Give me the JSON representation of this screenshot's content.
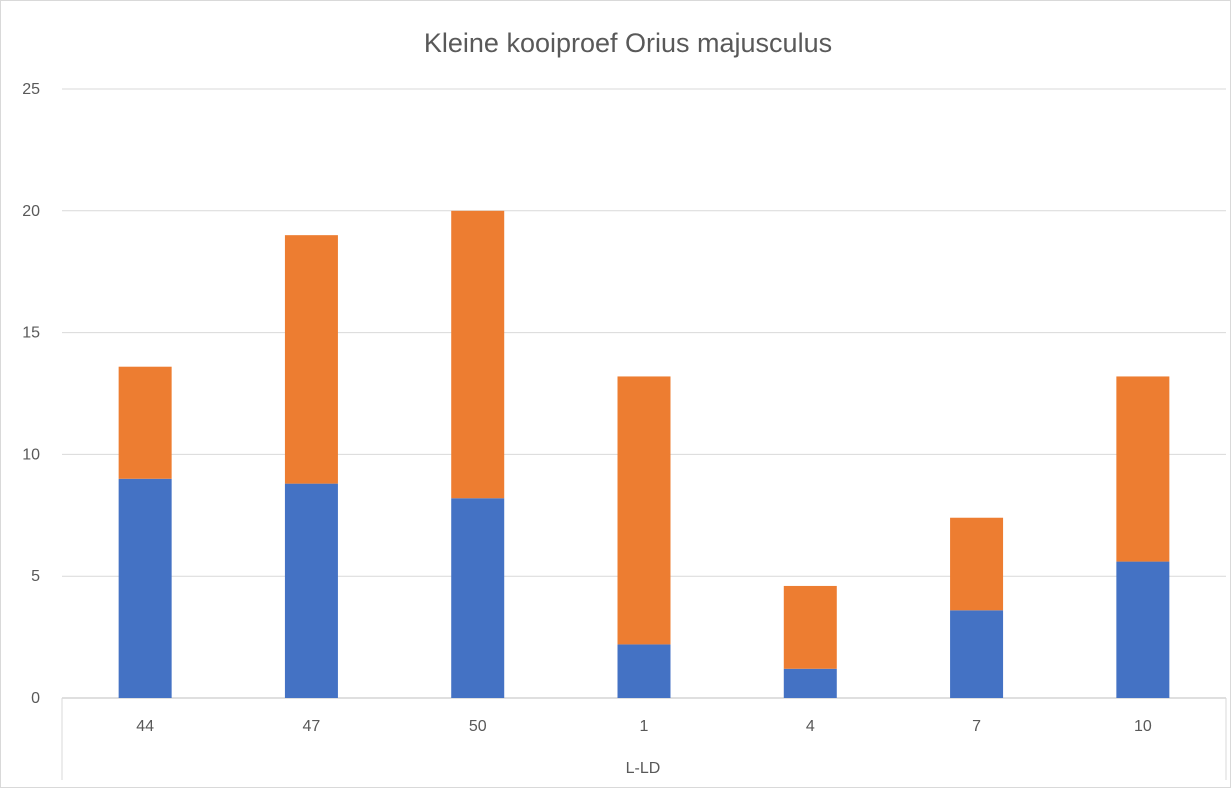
{
  "chart_data": {
    "type": "bar",
    "stacked": true,
    "title": "Kleine kooiproef Orius majusculus",
    "xlabel": "L-LD",
    "ylabel": "",
    "categories": [
      "44",
      "47",
      "50",
      "1",
      "4",
      "7",
      "10"
    ],
    "series": [
      {
        "color": "#4472c4",
        "values": [
          9.0,
          8.8,
          8.2,
          2.2,
          1.2,
          3.6,
          5.6
        ]
      },
      {
        "color": "#ed7d31",
        "values": [
          4.6,
          10.2,
          11.8,
          11.0,
          3.4,
          3.8,
          7.6
        ]
      }
    ],
    "ylim": [
      0,
      25
    ],
    "yticks": [
      "0",
      "5",
      "10",
      "15",
      "20",
      "25"
    ],
    "grid": true,
    "legend": "none"
  }
}
